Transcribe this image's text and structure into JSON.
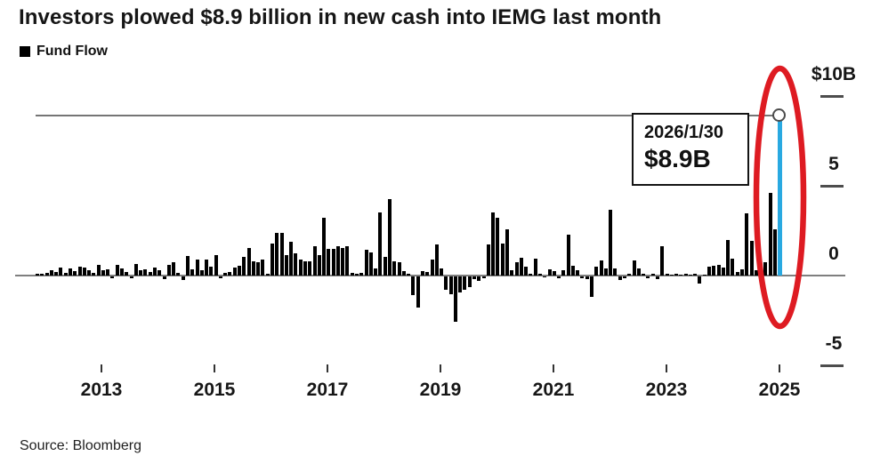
{
  "header": {
    "title": "Investors plowed $8.9 billion in new cash into IEMG last month",
    "legend_label": "Fund Flow"
  },
  "tooltip": {
    "date": "2026/1/30",
    "value": "$8.9B"
  },
  "source": "Source: Bloomberg",
  "colors": {
    "bar": "#000000",
    "highlight_bar": "#29a9e1",
    "annotation_red": "#de1b22",
    "axis_gray": "#7f7f7f",
    "tracker_gray": "#757575"
  },
  "chart_data": {
    "type": "bar",
    "title": "Investors plowed $8.9 billion in new cash into IEMG last month",
    "series_name": "Fund Flow",
    "unit": "USD billions",
    "x_start": "2012-11",
    "x_interval": "month",
    "x_end": "2026-01",
    "ylim": [
      -6,
      10.5
    ],
    "ytick_labels": [
      "$10B",
      "5",
      "0",
      "-5"
    ],
    "ytick_values": [
      10,
      5,
      0,
      -5
    ],
    "xtick_labels": [
      "2013",
      "2015",
      "2017",
      "2019",
      "2021",
      "2023",
      "2025"
    ],
    "highlight_point": {
      "date": "2026/1/30",
      "value": 8.9
    },
    "annotation": "red ellipse circling the highlighted 2026/1 bar",
    "values": [
      0.08,
      0.12,
      0.15,
      0.3,
      0.2,
      0.45,
      0.15,
      0.4,
      0.25,
      0.5,
      0.45,
      0.3,
      0.15,
      0.6,
      0.3,
      0.35,
      -0.1,
      0.6,
      0.4,
      0.2,
      -0.1,
      0.65,
      0.3,
      0.35,
      0.2,
      0.45,
      0.3,
      -0.15,
      0.6,
      0.75,
      0.15,
      -0.2,
      1.1,
      0.35,
      0.9,
      0.3,
      0.9,
      0.5,
      1.15,
      -0.1,
      0.15,
      0.2,
      0.45,
      0.55,
      1.05,
      1.55,
      0.8,
      0.75,
      0.9,
      0.1,
      1.8,
      2.4,
      2.4,
      1.15,
      1.9,
      1.25,
      0.9,
      0.8,
      0.8,
      1.65,
      1.15,
      3.2,
      1.5,
      1.5,
      1.65,
      1.55,
      1.65,
      0.15,
      0.1,
      0.15,
      1.45,
      1.3,
      0.4,
      3.5,
      1.05,
      4.25,
      0.8,
      0.75,
      0.25,
      0.1,
      -1.05,
      -1.75,
      0.25,
      0.2,
      0.9,
      1.75,
      0.4,
      -0.75,
      -1.0,
      -2.5,
      -0.9,
      -0.75,
      -0.6,
      -0.15,
      -0.25,
      -0.1,
      1.75,
      3.5,
      3.2,
      1.8,
      2.55,
      0.3,
      0.75,
      1.0,
      0.5,
      0.1,
      0.95,
      0.1,
      -0.05,
      0.35,
      0.25,
      -0.1,
      0.3,
      2.3,
      0.55,
      0.3,
      -0.1,
      -0.15,
      -1.15,
      0.5,
      0.85,
      0.4,
      3.65,
      0.4,
      -0.2,
      -0.1,
      0.1,
      0.85,
      0.4,
      0.1,
      -0.1,
      0.1,
      -0.15,
      1.65,
      0.1,
      0.05,
      0.1,
      0.05,
      0.1,
      0.05,
      0.1,
      -0.4,
      0.05,
      0.5,
      0.55,
      0.6,
      0.45,
      2.0,
      0.95,
      0.2,
      0.35,
      3.45,
      1.95,
      0.3,
      0.65,
      0.75,
      4.6,
      2.55,
      8.9
    ]
  }
}
